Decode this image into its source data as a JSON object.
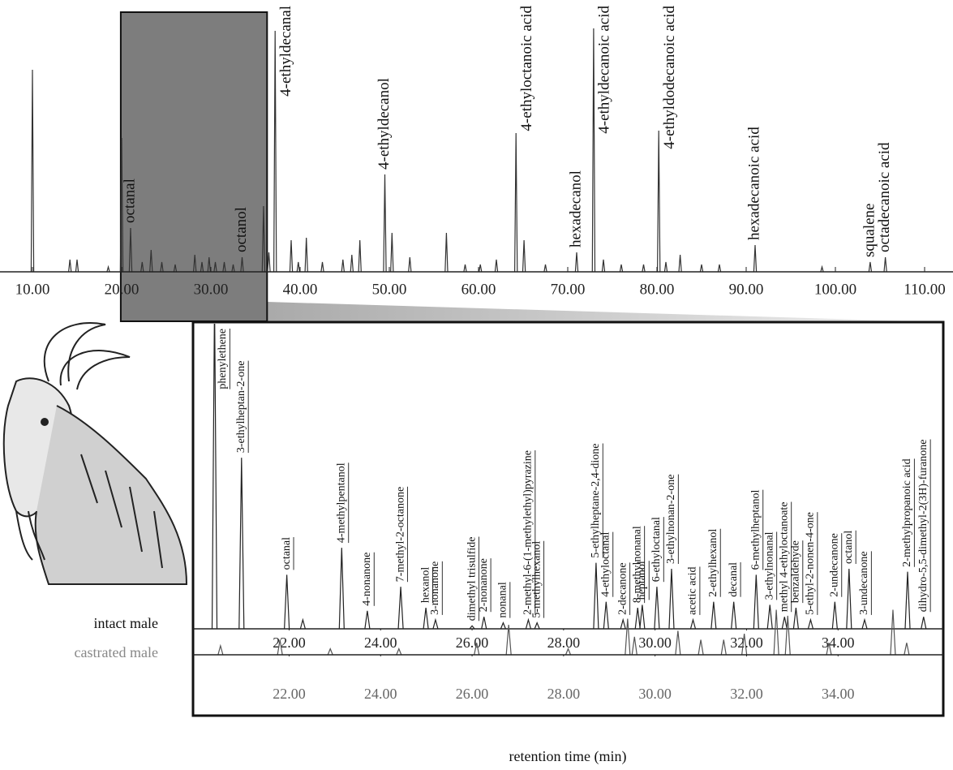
{
  "chart_data": [
    {
      "type": "chromatogram",
      "xlim": [
        8,
        112
      ],
      "ylim": [
        0,
        100
      ],
      "xticks": [
        {
          "value": 10,
          "label": "10.00"
        },
        {
          "value": 20,
          "label": "20.00"
        },
        {
          "value": 30,
          "label": "30.00"
        },
        {
          "value": 40,
          "label": "40.00"
        },
        {
          "value": 50,
          "label": "50.00"
        },
        {
          "value": 60,
          "label": "60.00"
        },
        {
          "value": 70,
          "label": "70.00"
        },
        {
          "value": 80,
          "label": "80.00"
        },
        {
          "value": 90,
          "label": "90.00"
        },
        {
          "value": 100,
          "label": "100.00"
        },
        {
          "value": 110,
          "label": "110.00"
        }
      ],
      "series": [
        {
          "color": "#333333",
          "x": [
            10.0,
            14.2,
            15.0,
            18.5,
            20.0,
            21.0,
            22.3,
            23.3,
            24.5,
            26.0,
            28.2,
            29.0,
            29.8,
            30.5,
            31.5,
            32.5,
            33.5,
            35.9,
            36.5,
            37.2,
            39.0,
            39.8,
            40.7,
            42.5,
            44.8,
            45.8,
            46.7,
            49.5,
            50.3,
            52.3,
            56.4,
            58.5,
            60.2,
            62.0,
            64.2,
            65.1,
            67.5,
            71.0,
            72.9,
            74.0,
            76.0,
            78.5,
            80.2,
            81.0,
            82.6,
            85.0,
            87.0,
            91.0,
            98.5,
            103.9,
            105.6
          ],
          "values": [
            83,
            5,
            5,
            2,
            55,
            18,
            4,
            9,
            4,
            3,
            7,
            4,
            6,
            4,
            4,
            3,
            6,
            27,
            8,
            99,
            13,
            4,
            14,
            4,
            5,
            7,
            13,
            40,
            16,
            6,
            16,
            3,
            3,
            5,
            57,
            13,
            3,
            8,
            100,
            5,
            3,
            3,
            58,
            4,
            7,
            3,
            3,
            11,
            2,
            4,
            6
          ]
        }
      ],
      "annotations": [
        {
          "text": "octanal",
          "x": 21.0
        },
        {
          "text": "octanol",
          "x": 33.5
        },
        {
          "text": "4-ethyldecanal",
          "x": 37.2
        },
        {
          "text": "4-ethyldecanol",
          "x": 49.5
        },
        {
          "text": "4-ethyloctanoic acid",
          "x": 64.2
        },
        {
          "text": "hexadecanol",
          "x": 71.0
        },
        {
          "text": "4-ethyldecanoic acid",
          "x": 72.9
        },
        {
          "text": "4-ethyldodecanoic acid",
          "x": 80.2
        },
        {
          "text": "hexadecanoic acid",
          "x": 91.0
        },
        {
          "text": "squalene",
          "x": 103.9
        },
        {
          "text": "octadecanoic acid",
          "x": 105.6
        }
      ]
    },
    {
      "type": "chromatogram",
      "xlim": [
        19.9,
        36.3
      ],
      "ylim": [
        0,
        100
      ],
      "xticks": [
        {
          "value": 22,
          "label": "22.00"
        },
        {
          "value": 24,
          "label": "24.00"
        },
        {
          "value": 26,
          "label": "26.00"
        },
        {
          "value": 28,
          "label": "28.00"
        },
        {
          "value": 30,
          "label": "30.00"
        },
        {
          "value": 32,
          "label": "32.00"
        },
        {
          "value": 34,
          "label": "34.00"
        }
      ],
      "series": [
        {
          "name": "intact male",
          "color": "#222222",
          "x": [
            20.37,
            20.96,
            21.95,
            22.3,
            23.15,
            23.71,
            24.44,
            24.99,
            25.2,
            26.0,
            26.26,
            26.68,
            27.23,
            27.42,
            28.71,
            28.93,
            29.3,
            29.62,
            29.72,
            30.04,
            30.36,
            30.83,
            31.28,
            31.72,
            32.21,
            32.51,
            32.83,
            33.08,
            33.4,
            33.93,
            34.24,
            34.58,
            35.52,
            35.87
          ],
          "values": [
            110,
            57,
            18,
            3,
            27,
            6,
            14,
            7,
            3,
            1,
            4,
            2,
            3,
            2,
            22,
            9,
            3,
            7,
            8,
            14,
            20,
            3,
            9,
            9,
            18,
            8,
            4,
            7,
            3,
            9,
            20,
            3,
            19,
            4
          ]
        }
      ],
      "annotations": [
        {
          "text": "phenylethene",
          "x": 20.37
        },
        {
          "text": "3-ethylheptan-2-one",
          "x": 20.96
        },
        {
          "text": "octanal",
          "x": 21.95
        },
        {
          "text": "4-methylpentanol",
          "x": 23.15
        },
        {
          "text": "4-nonanone",
          "x": 23.71
        },
        {
          "text": "7-methyl-2-octanone",
          "x": 24.44
        },
        {
          "text": "hexanol",
          "x": 24.99
        },
        {
          "text": "3-nonanone",
          "x": 25.2
        },
        {
          "text": "dimethyl trisulfide",
          "x": 26.0
        },
        {
          "text": "2-nonanone",
          "x": 26.26
        },
        {
          "text": "nonanal",
          "x": 26.68
        },
        {
          "text": "2-methyl-6-(1-methylethyl)pyrazine",
          "x": 27.23
        },
        {
          "text": "5-methylhexanol",
          "x": 27.42
        },
        {
          "text": "5-ethylheptane-2,4-dione",
          "x": 28.71
        },
        {
          "text": "4-ethyloctanal",
          "x": 28.93
        },
        {
          "text": "2-decanone",
          "x": 29.3
        },
        {
          "text": "8-methylnonanal",
          "x": 29.62
        },
        {
          "text": "heptanol",
          "x": 29.72
        },
        {
          "text": "6-ethyloctanal",
          "x": 30.04
        },
        {
          "text": "3-ethylnonan-2-one",
          "x": 30.36
        },
        {
          "text": "acetic acid",
          "x": 30.83
        },
        {
          "text": "2-ethylhexanol",
          "x": 31.28
        },
        {
          "text": "decanal",
          "x": 31.72
        },
        {
          "text": "6-methylheptanol",
          "x": 32.21
        },
        {
          "text": "3-ethylnonanal",
          "x": 32.51
        },
        {
          "text": "methyl 4-ethyloctanoate",
          "x": 32.83
        },
        {
          "text": "benzaldehyde",
          "x": 33.08
        },
        {
          "text": "5-ethyl-2-nonen-4-one",
          "x": 33.4
        },
        {
          "text": "2-undecanone",
          "x": 33.93
        },
        {
          "text": "octanol",
          "x": 34.24
        },
        {
          "text": "3-undecanone",
          "x": 34.58
        },
        {
          "text": "2-methylpropanoic acid",
          "x": 35.52
        },
        {
          "text": "dihydro-5,5-dimethyl-2(3H)-furanone",
          "x": 35.87
        }
      ]
    },
    {
      "type": "chromatogram",
      "xlim": [
        19.9,
        36.3
      ],
      "ylim": [
        0,
        100
      ],
      "xlabel": "retention time (min)",
      "xticks": [
        {
          "value": 22,
          "label": "22.00"
        },
        {
          "value": 24,
          "label": "24.00"
        },
        {
          "value": 26,
          "label": "26.00"
        },
        {
          "value": 28,
          "label": "28.00"
        },
        {
          "value": 30,
          "label": "30.00"
        },
        {
          "value": 32,
          "label": "32.00"
        },
        {
          "value": 34,
          "label": "34.00"
        }
      ],
      "series": [
        {
          "name": "castrated male",
          "color": "#555555",
          "x": [
            20.5,
            21.8,
            22.9,
            24.4,
            26.1,
            26.8,
            28.1,
            29.4,
            29.55,
            30.5,
            31.0,
            31.5,
            31.95,
            32.65,
            32.9,
            33.8,
            35.2,
            35.5
          ],
          "values": [
            3,
            5,
            2,
            2,
            4,
            10,
            2,
            12,
            6,
            8,
            5,
            5,
            7,
            15,
            13,
            4,
            15,
            4
          ]
        }
      ]
    }
  ]
}
